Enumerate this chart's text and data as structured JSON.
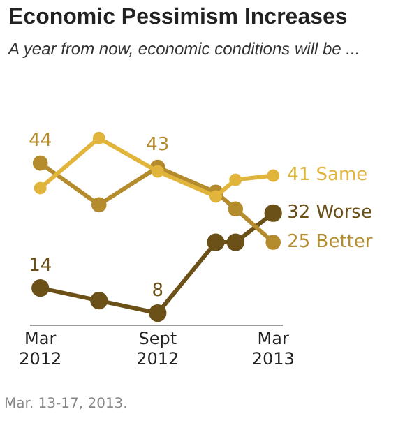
{
  "chart_data": {
    "type": "line",
    "title": "Economic Pessimism Increases",
    "subtitle": "A year from now, economic conditions will be ...",
    "x": [
      "2012-03",
      "2012-06",
      "2012-09",
      "2012-12",
      "2013-01",
      "2013-03"
    ],
    "series": [
      {
        "name": "Same",
        "color": "#e1b43c",
        "values": [
          38,
          50,
          42,
          36,
          40,
          41
        ],
        "value_labels": [
          null,
          null,
          null,
          null,
          null,
          "41"
        ]
      },
      {
        "name": "Better",
        "color": "#b48c2d",
        "values": [
          44,
          34,
          43,
          37,
          33,
          25
        ],
        "value_labels": [
          "44",
          null,
          "43",
          null,
          null,
          "25"
        ]
      },
      {
        "name": "Worse",
        "color": "#6b5118",
        "values": [
          14,
          11,
          8,
          25,
          25,
          32
        ],
        "value_labels": [
          "14",
          null,
          "8",
          null,
          null,
          "32"
        ]
      }
    ],
    "xlim": [
      "2012-02-15",
      "2013-03-15"
    ],
    "xticks": [
      {
        "value": "2012-03",
        "label": "Mar 2012"
      },
      {
        "value": "2012-09",
        "label": "Sept 2012"
      },
      {
        "value": "2013-03",
        "label": "Mar 2013"
      }
    ],
    "tick_labels": "x",
    "grid": false,
    "legend": false,
    "marker": "circle",
    "line_style": "solid",
    "annotations": [
      "Mar. 13-17, 2013."
    ]
  }
}
